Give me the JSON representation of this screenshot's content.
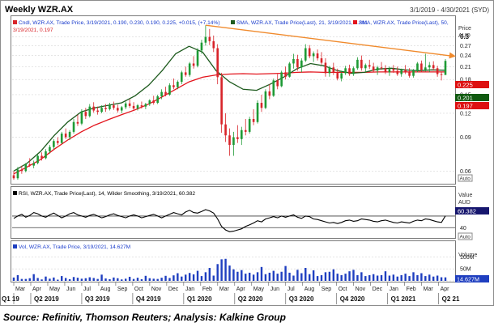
{
  "header": {
    "title": "Weekly WZR.AX",
    "date_range": "3/1/2019 - 4/30/2021 (SYD)"
  },
  "colors": {
    "up": "#1e9a35",
    "down": "#d8242a",
    "sma21": "#1d5a1d",
    "sma50": "#e3141c",
    "trend": "#f08a2c",
    "rsi": "#000000",
    "volume": "#1f3fc0",
    "label_price": "#1a3ccc",
    "label_value": "#16166e",
    "sma21_tag": "#105a10",
    "sma50_tag": "#dd1111",
    "vol_tag": "#1f3fc0"
  },
  "price_panel": {
    "legend": {
      "candle": "Cndl, WZR.AX, Trade Price, 3/19/2021, 0.190, 0.230, 0.190, 0.225, +0.015, (+7.14%)",
      "sma21": "SMA, WZR.AX, Trade Price(Last), 21, 3/19/2021, 0.201",
      "sma50_a": "SMA, WZR.AX, Trade Price(Last), 50,",
      "sma50_b": "3/19/2021, 0.197"
    },
    "axis_title": "Price",
    "axis_unit": "AUD",
    "auto": "Auto",
    "tags": {
      "last": "0.225",
      "sma21": "0.201",
      "sma50": "0.197"
    }
  },
  "rsi_panel": {
    "legend": "RSI, WZR.AX, Trade Price(Last), 14, Wilder Smoothing, 3/19/2021, 60.382",
    "axis_title": "Value",
    "axis_unit": "AUD",
    "tag": "60.382",
    "auto": "Auto"
  },
  "vol_panel": {
    "legend": "Vol, WZR.AX, Trade Price, 3/19/2021, 14.627M",
    "axis_title": "Volume",
    "tag": "14.627M",
    "auto": "Auto"
  },
  "time_axis": {
    "months": [
      "Mar",
      "Apr",
      "May",
      "Jun",
      "Jul",
      "Aug",
      "Sep",
      "Oct",
      "Nov",
      "Dec",
      "Jan",
      "Feb",
      "Mar",
      "Apr",
      "May",
      "Jun",
      "Jul",
      "Aug",
      "Sep",
      "Oct",
      "Nov",
      "Dec",
      "Jan",
      "Feb",
      "Mar",
      "Apr"
    ],
    "quarters": [
      "Q1 19",
      "Q2 2019",
      "Q3 2019",
      "Q4 2019",
      "Q1 2020",
      "Q2 2020",
      "Q3 2020",
      "Q4 2020",
      "Q1 2021",
      "Q2 21"
    ]
  },
  "source": "Source: Refinitiv, Thomson Reuters; Analysis: Kalkine Group",
  "chart_data": {
    "type": "candlestick",
    "title": "Weekly WZR.AX",
    "unit": "AUD",
    "x_range": [
      "2019-03-01",
      "2021-04-30"
    ],
    "price_scale": "log",
    "price_ylim": [
      0.052,
      0.37
    ],
    "price_ticks": [
      0.06,
      0.09,
      0.12,
      0.15,
      0.18,
      0.21,
      0.24,
      0.27,
      0.3
    ],
    "candles_ohlc": [
      [
        0.057,
        0.06,
        0.054,
        0.055
      ],
      [
        0.055,
        0.063,
        0.054,
        0.061
      ],
      [
        0.061,
        0.064,
        0.058,
        0.06
      ],
      [
        0.06,
        0.066,
        0.059,
        0.065
      ],
      [
        0.065,
        0.07,
        0.063,
        0.064
      ],
      [
        0.064,
        0.068,
        0.062,
        0.066
      ],
      [
        0.066,
        0.073,
        0.065,
        0.072
      ],
      [
        0.072,
        0.075,
        0.068,
        0.07
      ],
      [
        0.07,
        0.078,
        0.069,
        0.076
      ],
      [
        0.076,
        0.082,
        0.074,
        0.08
      ],
      [
        0.08,
        0.088,
        0.078,
        0.086
      ],
      [
        0.086,
        0.09,
        0.082,
        0.084
      ],
      [
        0.084,
        0.096,
        0.083,
        0.094
      ],
      [
        0.094,
        0.1,
        0.088,
        0.09
      ],
      [
        0.09,
        0.098,
        0.087,
        0.096
      ],
      [
        0.096,
        0.112,
        0.094,
        0.108
      ],
      [
        0.108,
        0.118,
        0.103,
        0.106
      ],
      [
        0.106,
        0.126,
        0.104,
        0.122
      ],
      [
        0.122,
        0.128,
        0.112,
        0.116
      ],
      [
        0.116,
        0.134,
        0.114,
        0.13
      ],
      [
        0.13,
        0.137,
        0.121,
        0.124
      ],
      [
        0.124,
        0.13,
        0.118,
        0.122
      ],
      [
        0.122,
        0.132,
        0.12,
        0.128
      ],
      [
        0.128,
        0.134,
        0.122,
        0.126
      ],
      [
        0.126,
        0.136,
        0.124,
        0.132
      ],
      [
        0.132,
        0.138,
        0.125,
        0.128
      ],
      [
        0.128,
        0.133,
        0.121,
        0.124
      ],
      [
        0.124,
        0.131,
        0.12,
        0.129
      ],
      [
        0.129,
        0.138,
        0.126,
        0.135
      ],
      [
        0.135,
        0.142,
        0.128,
        0.131
      ],
      [
        0.131,
        0.137,
        0.125,
        0.127
      ],
      [
        0.127,
        0.134,
        0.124,
        0.132
      ],
      [
        0.132,
        0.138,
        0.127,
        0.13
      ],
      [
        0.13,
        0.136,
        0.126,
        0.134
      ],
      [
        0.134,
        0.142,
        0.131,
        0.14
      ],
      [
        0.14,
        0.148,
        0.133,
        0.136
      ],
      [
        0.136,
        0.15,
        0.134,
        0.147
      ],
      [
        0.147,
        0.16,
        0.142,
        0.155
      ],
      [
        0.155,
        0.165,
        0.147,
        0.15
      ],
      [
        0.15,
        0.172,
        0.148,
        0.168
      ],
      [
        0.168,
        0.182,
        0.16,
        0.164
      ],
      [
        0.164,
        0.178,
        0.16,
        0.175
      ],
      [
        0.175,
        0.2,
        0.17,
        0.196
      ],
      [
        0.196,
        0.21,
        0.186,
        0.19
      ],
      [
        0.19,
        0.222,
        0.186,
        0.218
      ],
      [
        0.218,
        0.238,
        0.205,
        0.212
      ],
      [
        0.212,
        0.262,
        0.208,
        0.255
      ],
      [
        0.255,
        0.29,
        0.245,
        0.28
      ],
      [
        0.28,
        0.345,
        0.27,
        0.3
      ],
      [
        0.3,
        0.33,
        0.272,
        0.285
      ],
      [
        0.285,
        0.305,
        0.25,
        0.262
      ],
      [
        0.262,
        0.275,
        0.17,
        0.185
      ],
      [
        0.185,
        0.195,
        0.095,
        0.105
      ],
      [
        0.105,
        0.12,
        0.085,
        0.092
      ],
      [
        0.092,
        0.1,
        0.072,
        0.082
      ],
      [
        0.082,
        0.096,
        0.072,
        0.09
      ],
      [
        0.09,
        0.104,
        0.084,
        0.088
      ],
      [
        0.088,
        0.102,
        0.082,
        0.098
      ],
      [
        0.098,
        0.112,
        0.092,
        0.096
      ],
      [
        0.096,
        0.115,
        0.094,
        0.112
      ],
      [
        0.112,
        0.126,
        0.104,
        0.108
      ],
      [
        0.108,
        0.14,
        0.106,
        0.136
      ],
      [
        0.136,
        0.15,
        0.122,
        0.128
      ],
      [
        0.128,
        0.16,
        0.126,
        0.156
      ],
      [
        0.156,
        0.17,
        0.142,
        0.148
      ],
      [
        0.148,
        0.182,
        0.146,
        0.178
      ],
      [
        0.178,
        0.192,
        0.16,
        0.166
      ],
      [
        0.166,
        0.2,
        0.164,
        0.196
      ],
      [
        0.196,
        0.21,
        0.18,
        0.186
      ],
      [
        0.186,
        0.222,
        0.184,
        0.218
      ],
      [
        0.218,
        0.245,
        0.205,
        0.23
      ],
      [
        0.23,
        0.242,
        0.2,
        0.208
      ],
      [
        0.208,
        0.232,
        0.196,
        0.226
      ],
      [
        0.226,
        0.275,
        0.222,
        0.262
      ],
      [
        0.262,
        0.272,
        0.232,
        0.238
      ],
      [
        0.238,
        0.252,
        0.222,
        0.246
      ],
      [
        0.246,
        0.258,
        0.226,
        0.232
      ],
      [
        0.232,
        0.25,
        0.215,
        0.22
      ],
      [
        0.22,
        0.232,
        0.186,
        0.194
      ],
      [
        0.194,
        0.212,
        0.186,
        0.208
      ],
      [
        0.208,
        0.22,
        0.19,
        0.196
      ],
      [
        0.196,
        0.205,
        0.178,
        0.182
      ],
      [
        0.182,
        0.2,
        0.176,
        0.194
      ],
      [
        0.194,
        0.212,
        0.19,
        0.206
      ],
      [
        0.206,
        0.215,
        0.188,
        0.192
      ],
      [
        0.192,
        0.21,
        0.188,
        0.206
      ],
      [
        0.206,
        0.235,
        0.202,
        0.228
      ],
      [
        0.228,
        0.24,
        0.2,
        0.206
      ],
      [
        0.206,
        0.218,
        0.196,
        0.214
      ],
      [
        0.214,
        0.228,
        0.204,
        0.21
      ],
      [
        0.21,
        0.22,
        0.196,
        0.2
      ],
      [
        0.2,
        0.212,
        0.19,
        0.208
      ],
      [
        0.208,
        0.222,
        0.202,
        0.206
      ],
      [
        0.206,
        0.214,
        0.192,
        0.196
      ],
      [
        0.196,
        0.21,
        0.188,
        0.204
      ],
      [
        0.204,
        0.214,
        0.195,
        0.2
      ],
      [
        0.2,
        0.21,
        0.188,
        0.192
      ],
      [
        0.192,
        0.205,
        0.186,
        0.202
      ],
      [
        0.202,
        0.214,
        0.192,
        0.196
      ],
      [
        0.196,
        0.206,
        0.184,
        0.188
      ],
      [
        0.188,
        0.204,
        0.184,
        0.2
      ],
      [
        0.2,
        0.222,
        0.196,
        0.218
      ],
      [
        0.218,
        0.226,
        0.196,
        0.202
      ],
      [
        0.202,
        0.245,
        0.198,
        0.208
      ],
      [
        0.208,
        0.222,
        0.196,
        0.214
      ],
      [
        0.214,
        0.224,
        0.2,
        0.206
      ],
      [
        0.206,
        0.212,
        0.186,
        0.192
      ],
      [
        0.192,
        0.198,
        0.178,
        0.19
      ],
      [
        0.19,
        0.23,
        0.19,
        0.225
      ]
    ],
    "sma21": [
      0.06,
      0.066,
      0.076,
      0.092,
      0.108,
      0.122,
      0.128,
      0.132,
      0.136,
      0.148,
      0.168,
      0.2,
      0.245,
      0.268,
      0.25,
      0.2,
      0.175,
      0.16,
      0.158,
      0.17,
      0.185,
      0.205,
      0.218,
      0.212,
      0.2,
      0.194,
      0.196,
      0.204,
      0.206,
      0.202,
      0.2,
      0.202,
      0.201
    ],
    "sma50": [
      0.058,
      0.063,
      0.069,
      0.078,
      0.087,
      0.096,
      0.104,
      0.111,
      0.118,
      0.125,
      0.134,
      0.146,
      0.16,
      0.175,
      0.185,
      0.19,
      0.192,
      0.193,
      0.192,
      0.193,
      0.194,
      0.196,
      0.197,
      0.196,
      0.196,
      0.196,
      0.196,
      0.197,
      0.197,
      0.197,
      0.197,
      0.197,
      0.197
    ],
    "trendline": [
      [
        48,
        0.345
      ],
      [
        110,
        0.238
      ]
    ],
    "rsi": {
      "period": 14,
      "ylim": [
        25,
        92
      ],
      "levels": [
        40,
        60
      ],
      "values": [
        56,
        60,
        63,
        58,
        61,
        66,
        64,
        60,
        58,
        62,
        65,
        61,
        57,
        60,
        64,
        66,
        62,
        60,
        58,
        61,
        63,
        60,
        57,
        59,
        62,
        64,
        61,
        59,
        57,
        60,
        62,
        60,
        57,
        59,
        61,
        63,
        60,
        57,
        60,
        63,
        66,
        64,
        62,
        67,
        70,
        66,
        65,
        68,
        71,
        69,
        65,
        55,
        42,
        36,
        33,
        34,
        36,
        38,
        42,
        45,
        48,
        52,
        50,
        55,
        57,
        59,
        57,
        60,
        58,
        60,
        62,
        58,
        56,
        60,
        59,
        55,
        54,
        52,
        50,
        48,
        49,
        47,
        49,
        52,
        53,
        51,
        52,
        55,
        54,
        53,
        51,
        50,
        52,
        53,
        51,
        49,
        48,
        50,
        49,
        48,
        51,
        53,
        52,
        55,
        54,
        52,
        50,
        49,
        60.382
      ]
    },
    "volume_millions": {
      "ylim": [
        0,
        125
      ],
      "ticks": [
        0,
        50,
        100
      ],
      "values": [
        14,
        24,
        8,
        8,
        11,
        28,
        12,
        6,
        18,
        9,
        14,
        5,
        20,
        12,
        7,
        16,
        13,
        9,
        11,
        15,
        12,
        8,
        26,
        10,
        7,
        14,
        11,
        6,
        9,
        17,
        8,
        13,
        7,
        21,
        11,
        9,
        8,
        13,
        21,
        12,
        23,
        32,
        18,
        26,
        33,
        27,
        42,
        20,
        36,
        54,
        22,
        70,
        90,
        92,
        64,
        48,
        38,
        45,
        30,
        34,
        26,
        36,
        58,
        28,
        34,
        42,
        30,
        38,
        62,
        34,
        22,
        46,
        32,
        54,
        28,
        44,
        20,
        24,
        36,
        38,
        48,
        30,
        24,
        30,
        40,
        46,
        24,
        36,
        20,
        24,
        28,
        22,
        24,
        40,
        22,
        26,
        18,
        24,
        30,
        20,
        36,
        24,
        32,
        20,
        26,
        18,
        22,
        15,
        14.627
      ]
    }
  }
}
